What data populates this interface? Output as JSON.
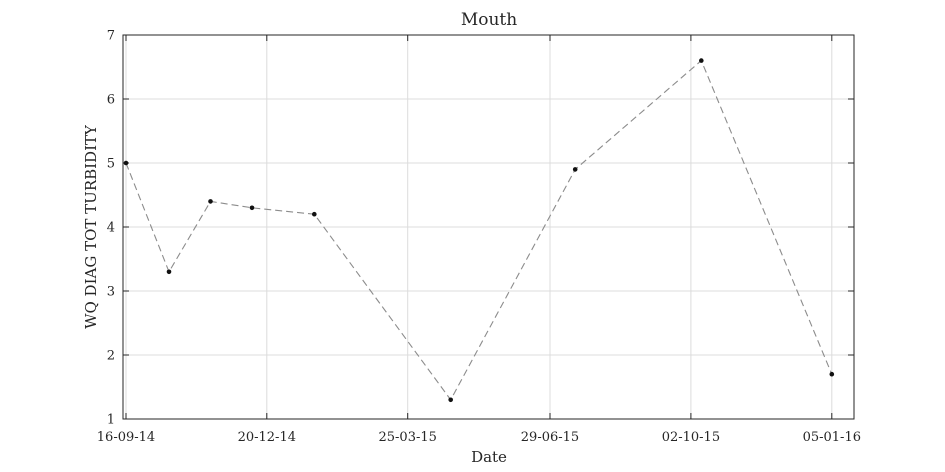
{
  "chart_data": {
    "type": "line",
    "title": "Mouth",
    "xlabel": "Date",
    "ylabel": "WQ DIAG TOT TURBIDITY",
    "x_ticks": [
      "2014-09-16",
      "2014-12-20",
      "2015-03-25",
      "2015-06-29",
      "2015-10-02",
      "2016-01-05"
    ],
    "x_tick_labels": [
      "16-09-14",
      "20-12-14",
      "25-03-15",
      "29-06-15",
      "02-10-15",
      "05-01-16"
    ],
    "xlim": [
      "2014-09-14",
      "2016-01-20"
    ],
    "ylim": [
      1,
      7
    ],
    "y_ticks": [
      1,
      2,
      3,
      4,
      5,
      6,
      7
    ],
    "grid": true,
    "series": [
      {
        "x": [
          "2014-09-16",
          "2014-10-15",
          "2014-11-12",
          "2014-12-10",
          "2015-01-21",
          "2015-04-23",
          "2015-07-16",
          "2015-10-09",
          "2016-01-05"
        ],
        "y": [
          5.0,
          3.3,
          4.4,
          4.3,
          4.2,
          1.3,
          4.9,
          6.6,
          1.7
        ]
      }
    ],
    "colors": {
      "line": "#8c8c8c",
      "marker": "#111111",
      "grid": "#dcdcdc",
      "axis": "#262626"
    }
  }
}
